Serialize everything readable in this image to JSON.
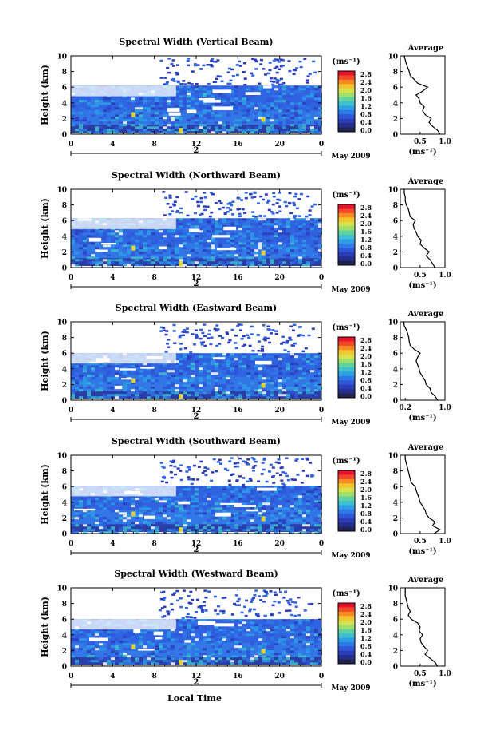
{
  "figure": {
    "xlabel": "Local Time",
    "date_label": "May 2009",
    "day_label": "2",
    "colorbar_unit": "(ms⁻¹)",
    "colorbar_ticks": [
      "2.8",
      "2.4",
      "2.0",
      "1.6",
      "1.2",
      "0.8",
      "0.4",
      "0.0"
    ],
    "colorbar_colors": [
      "#e8102a",
      "#f2482a",
      "#f78a22",
      "#f5c52e",
      "#d8e24a",
      "#9fe06a",
      "#5fd2a0",
      "#3fc0cf",
      "#2d9fe6",
      "#2f78e8",
      "#2f55d8",
      "#2b3cb8",
      "#262e8c",
      "#20234f"
    ],
    "avg_title": "Average",
    "avg_unit": "(ms⁻¹)"
  },
  "chart_data": [
    {
      "type": "heatmap",
      "title": "Spectral Width (Vertical Beam)",
      "ylabel": "Height (km)",
      "xlim": [
        0,
        24
      ],
      "ylim": [
        0,
        10
      ],
      "xticks": [
        "0",
        "4",
        "8",
        "12",
        "16",
        "20",
        "0"
      ],
      "yticks": [
        "0",
        "2",
        "4",
        "6",
        "8",
        "10"
      ],
      "cbar_range": [
        0,
        3.0
      ],
      "top_km": 6.2,
      "avg_profile": {
        "title": "Average",
        "xlim": [
          0.1,
          1.0
        ],
        "xticks": [
          "0.5",
          "1.0"
        ],
        "heights": [
          0,
          0.5,
          1,
          1.5,
          2,
          2.5,
          3,
          3.5,
          4,
          4.5,
          5,
          5.5,
          6,
          6.5,
          7,
          7.5,
          8,
          8.5,
          9,
          9.5,
          10
        ],
        "values": [
          0.9,
          0.85,
          0.75,
          0.68,
          0.72,
          0.6,
          0.55,
          0.58,
          0.5,
          0.48,
          0.42,
          0.55,
          0.65,
          0.45,
          0.38,
          0.3,
          0.28,
          0.25,
          0.22,
          0.2,
          0.18
        ]
      }
    },
    {
      "type": "heatmap",
      "title": "Spectral Width (Northward Beam)",
      "ylabel": "Height (km)",
      "xlim": [
        0,
        24
      ],
      "ylim": [
        0,
        10
      ],
      "xticks": [
        "0",
        "4",
        "8",
        "12",
        "16",
        "20",
        "0"
      ],
      "yticks": [
        "0",
        "2",
        "4",
        "6",
        "8",
        "10"
      ],
      "cbar_range": [
        0,
        3.0
      ],
      "top_km": 6.3,
      "avg_profile": {
        "title": "Average",
        "xlim": [
          0.1,
          1.0
        ],
        "xticks": [
          "0.5",
          "1.0"
        ],
        "heights": [
          0,
          0.5,
          1,
          1.5,
          2,
          2.5,
          3,
          3.5,
          4,
          4.5,
          5,
          5.5,
          6,
          6.5,
          7,
          7.5,
          8,
          8.5,
          9,
          9.5,
          10
        ],
        "values": [
          0.8,
          0.75,
          0.7,
          0.62,
          0.68,
          0.58,
          0.5,
          0.52,
          0.45,
          0.42,
          0.38,
          0.36,
          0.4,
          0.3,
          0.28,
          0.26,
          0.22,
          0.2,
          0.2,
          0.18,
          0.18
        ]
      }
    },
    {
      "type": "heatmap",
      "title": "Spectral Width (Eastward Beam)",
      "ylabel": "Height (km)",
      "xlim": [
        0,
        24
      ],
      "ylim": [
        0,
        10
      ],
      "xticks": [
        "0",
        "4",
        "8",
        "12",
        "16",
        "20",
        "0"
      ],
      "yticks": [
        "0",
        "2",
        "4",
        "6",
        "8",
        "10"
      ],
      "cbar_range": [
        0,
        3.0
      ],
      "top_km": 6.0,
      "avg_profile": {
        "title": "Average",
        "xlim": [
          0.1,
          1.0
        ],
        "xticks": [
          "0.2",
          "1.0"
        ],
        "heights": [
          0,
          0.5,
          1,
          1.5,
          2,
          2.5,
          3,
          3.5,
          4,
          4.5,
          5,
          5.5,
          6,
          6.5,
          7,
          7.5,
          8,
          8.5,
          9,
          9.5,
          10
        ],
        "values": [
          0.85,
          0.8,
          0.72,
          0.7,
          0.62,
          0.6,
          0.55,
          0.5,
          0.48,
          0.45,
          0.42,
          0.45,
          0.5,
          0.38,
          0.3,
          0.28,
          0.27,
          0.25,
          0.22,
          0.18,
          0.17
        ]
      }
    },
    {
      "type": "heatmap",
      "title": "Spectral Width (Southward Beam)",
      "ylabel": "Height (km)",
      "xlim": [
        0,
        24
      ],
      "ylim": [
        0,
        10
      ],
      "xticks": [
        "0",
        "4",
        "8",
        "12",
        "16",
        "20",
        "0"
      ],
      "yticks": [
        "0",
        "2",
        "4",
        "6",
        "8",
        "10"
      ],
      "cbar_range": [
        0,
        3.0
      ],
      "top_km": 6.1,
      "avg_profile": {
        "title": "Average",
        "xlim": [
          0.1,
          1.0
        ],
        "xticks": [
          "0.5",
          "1.0"
        ],
        "heights": [
          0,
          0.5,
          1,
          1.5,
          2,
          2.5,
          3,
          3.5,
          4,
          4.5,
          5,
          5.5,
          6,
          6.5,
          7,
          7.5,
          8,
          8.5,
          9,
          9.5,
          10
        ],
        "values": [
          0.78,
          0.9,
          0.75,
          0.8,
          0.68,
          0.62,
          0.6,
          0.55,
          0.5,
          0.48,
          0.45,
          0.42,
          0.4,
          0.32,
          0.3,
          0.28,
          0.26,
          0.24,
          0.22,
          0.2,
          0.2
        ]
      }
    },
    {
      "type": "heatmap",
      "title": "Spectral Width (Westward Beam)",
      "ylabel": "Height (km)",
      "xlim": [
        0,
        24
      ],
      "ylim": [
        0,
        10
      ],
      "xticks": [
        "0",
        "4",
        "8",
        "12",
        "16",
        "20",
        "0"
      ],
      "yticks": [
        "0",
        "2",
        "4",
        "6",
        "8",
        "10"
      ],
      "cbar_range": [
        0,
        3.0
      ],
      "top_km": 6.0,
      "avg_profile": {
        "title": "Average",
        "xlim": [
          0.1,
          1.0
        ],
        "xticks": [
          "0.5",
          "1.0"
        ],
        "heights": [
          0,
          0.5,
          1,
          1.5,
          2,
          2.5,
          3,
          3.5,
          4,
          4.5,
          5,
          5.5,
          6,
          6.5,
          7,
          7.5,
          8,
          8.5,
          9,
          9.5,
          10
        ],
        "values": [
          0.85,
          0.8,
          0.7,
          0.6,
          0.65,
          0.58,
          0.52,
          0.5,
          0.55,
          0.48,
          0.5,
          0.45,
          0.32,
          0.26,
          0.3,
          0.26,
          0.24,
          0.22,
          0.2,
          0.2,
          0.2
        ]
      }
    }
  ]
}
